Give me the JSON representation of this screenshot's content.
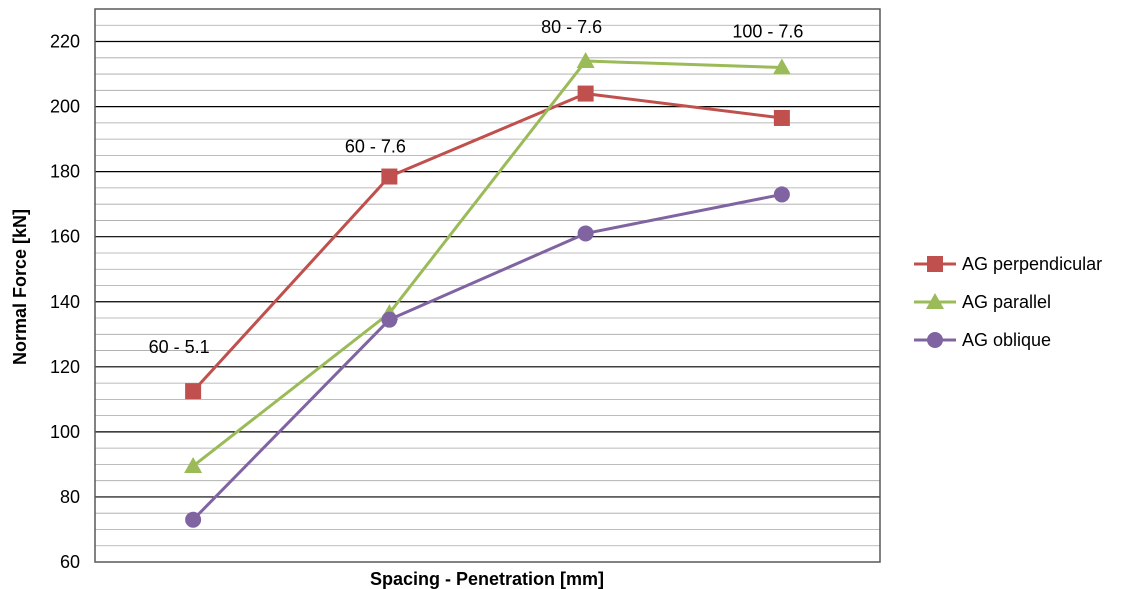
{
  "chart_data": {
    "type": "line",
    "title": "",
    "xlabel": "Spacing - Penetration [mm]",
    "ylabel": "Normal Force [kN]",
    "ylim": [
      60,
      230
    ],
    "y_ticks": [
      60,
      80,
      100,
      120,
      140,
      160,
      180,
      200,
      220
    ],
    "grid": "major and minor horizontal",
    "legend_position": "right",
    "point_labels": [
      "60 - 5.1",
      "60 - 7.6",
      "80 - 7.6",
      "100 - 7.6"
    ],
    "series": [
      {
        "name": "AG perpendicular",
        "color": "#c0504d",
        "marker": "square",
        "values": [
          112.5,
          178.5,
          204,
          196.5
        ]
      },
      {
        "name": "AG parallel",
        "color": "#9bbb59",
        "marker": "triangle",
        "values": [
          89.5,
          136.5,
          214,
          212
        ]
      },
      {
        "name": "AG oblique",
        "color": "#8064a2",
        "marker": "circle",
        "values": [
          73,
          134.5,
          161,
          173
        ]
      }
    ]
  }
}
